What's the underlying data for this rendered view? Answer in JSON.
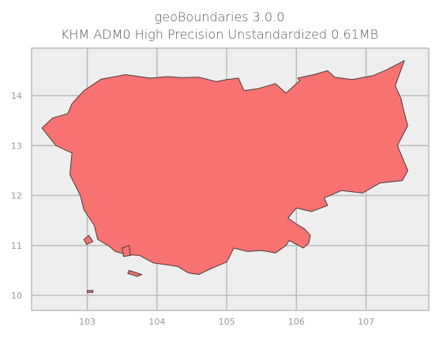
{
  "title": {
    "line1": "geoBoundaries 3.0.0",
    "line2": "KHM ADM0 High Precision Unstandardized 0.61MB"
  },
  "map": {
    "type": "choropleth-outline",
    "region": "KHM",
    "fill_color": "#f87272",
    "stroke_color": "#4a3a3a",
    "background_color": "#eeeeee",
    "grid_color": "#bbbbbb",
    "grid": true,
    "x_range": [
      102.2,
      107.9
    ],
    "y_range": [
      9.7,
      14.95
    ],
    "x_ticks": [
      103,
      104,
      105,
      106,
      107
    ],
    "y_ticks": [
      10,
      11,
      12,
      13,
      14
    ],
    "x_tick_labels": [
      "103",
      "104",
      "105",
      "106",
      "107"
    ],
    "y_tick_labels": [
      "10",
      "11",
      "12",
      "13",
      "14"
    ],
    "outline_lonlat": [
      [
        102.5,
        13.55
      ],
      [
        102.72,
        13.64
      ],
      [
        102.78,
        13.84
      ],
      [
        102.95,
        14.1
      ],
      [
        103.2,
        14.33
      ],
      [
        103.55,
        14.42
      ],
      [
        103.9,
        14.35
      ],
      [
        104.15,
        14.38
      ],
      [
        104.35,
        14.36
      ],
      [
        104.6,
        14.37
      ],
      [
        104.85,
        14.28
      ],
      [
        105.0,
        14.32
      ],
      [
        105.17,
        14.35
      ],
      [
        105.25,
        14.1
      ],
      [
        105.45,
        14.14
      ],
      [
        105.55,
        14.18
      ],
      [
        105.7,
        14.24
      ],
      [
        105.85,
        14.05
      ],
      [
        106.05,
        14.3
      ],
      [
        106.02,
        14.35
      ],
      [
        106.25,
        14.42
      ],
      [
        106.45,
        14.5
      ],
      [
        106.55,
        14.37
      ],
      [
        106.8,
        14.32
      ],
      [
        107.1,
        14.4
      ],
      [
        107.3,
        14.52
      ],
      [
        107.55,
        14.7
      ],
      [
        107.42,
        14.2
      ],
      [
        107.5,
        13.95
      ],
      [
        107.55,
        13.65
      ],
      [
        107.6,
        13.4
      ],
      [
        107.45,
        13.0
      ],
      [
        107.6,
        12.5
      ],
      [
        107.52,
        12.3
      ],
      [
        107.2,
        12.25
      ],
      [
        106.95,
        12.05
      ],
      [
        106.65,
        12.1
      ],
      [
        106.4,
        11.95
      ],
      [
        106.45,
        11.8
      ],
      [
        106.22,
        11.68
      ],
      [
        106.0,
        11.75
      ],
      [
        105.88,
        11.55
      ],
      [
        106.0,
        11.43
      ],
      [
        106.12,
        11.33
      ],
      [
        106.2,
        11.2
      ],
      [
        106.18,
        11.05
      ],
      [
        106.1,
        10.95
      ],
      [
        105.9,
        11.1
      ],
      [
        105.85,
        11.0
      ],
      [
        105.7,
        10.85
      ],
      [
        105.5,
        10.9
      ],
      [
        105.3,
        10.88
      ],
      [
        105.1,
        10.95
      ],
      [
        105.05,
        10.8
      ],
      [
        105.0,
        10.67
      ],
      [
        104.8,
        10.55
      ],
      [
        104.6,
        10.42
      ],
      [
        104.45,
        10.45
      ],
      [
        104.3,
        10.58
      ],
      [
        104.1,
        10.62
      ],
      [
        103.95,
        10.65
      ],
      [
        103.75,
        10.8
      ],
      [
        103.55,
        10.82
      ],
      [
        103.4,
        10.88
      ],
      [
        103.3,
        11.0
      ],
      [
        103.15,
        11.12
      ],
      [
        103.1,
        11.4
      ],
      [
        102.95,
        11.72
      ],
      [
        102.9,
        12.0
      ],
      [
        102.75,
        12.42
      ],
      [
        102.78,
        12.85
      ],
      [
        102.55,
        13.0
      ],
      [
        102.35,
        13.35
      ],
      [
        102.5,
        13.55
      ]
    ],
    "islands_lonlat": [
      [
        [
          103.5,
          10.95
        ],
        [
          103.6,
          11.0
        ],
        [
          103.62,
          10.8
        ],
        [
          103.52,
          10.78
        ]
      ],
      [
        [
          102.95,
          11.12
        ],
        [
          103.02,
          11.2
        ],
        [
          103.08,
          11.08
        ],
        [
          102.99,
          11.02
        ]
      ],
      [
        [
          103.6,
          10.5
        ],
        [
          103.78,
          10.42
        ],
        [
          103.72,
          10.38
        ],
        [
          103.58,
          10.44
        ]
      ],
      [
        [
          103.0,
          10.1
        ],
        [
          103.08,
          10.1
        ],
        [
          103.08,
          10.06
        ],
        [
          103.0,
          10.06
        ]
      ]
    ]
  }
}
